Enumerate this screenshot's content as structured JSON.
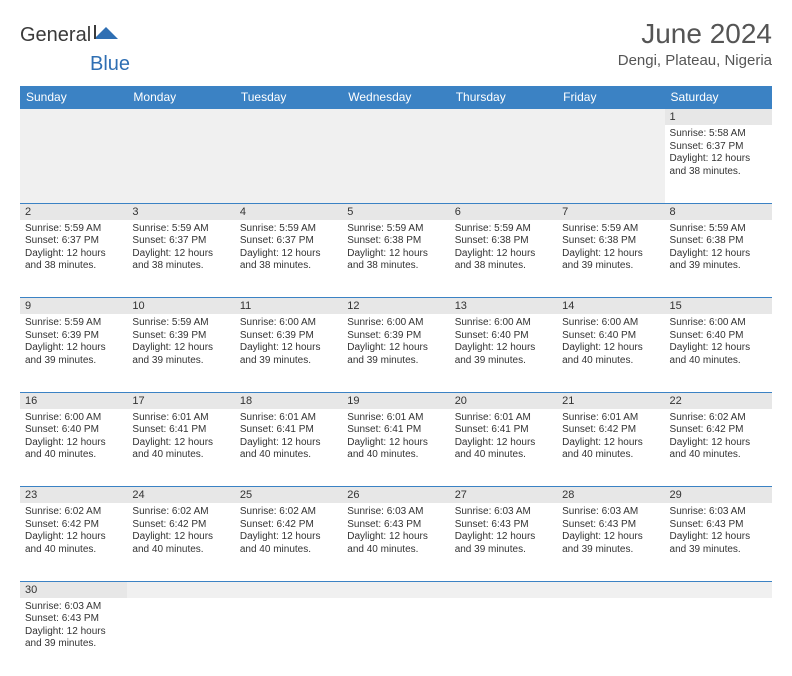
{
  "brand": {
    "part1": "General",
    "part2": "Blue",
    "brand_color": "#2f6fb3"
  },
  "title": "June 2024",
  "location": "Dengi, Plateau, Nigeria",
  "colors": {
    "header_bg": "#3b82c4",
    "header_fg": "#ffffff",
    "daynum_bg": "#e7e7e7",
    "rule": "#3b82c4",
    "empty_bg": "#f0f0f0"
  },
  "day_headers": [
    "Sunday",
    "Monday",
    "Tuesday",
    "Wednesday",
    "Thursday",
    "Friday",
    "Saturday"
  ],
  "weeks": [
    [
      null,
      null,
      null,
      null,
      null,
      null,
      {
        "n": "1",
        "sr": "Sunrise: 5:58 AM",
        "ss": "Sunset: 6:37 PM",
        "d1": "Daylight: 12 hours",
        "d2": "and 38 minutes."
      }
    ],
    [
      {
        "n": "2",
        "sr": "Sunrise: 5:59 AM",
        "ss": "Sunset: 6:37 PM",
        "d1": "Daylight: 12 hours",
        "d2": "and 38 minutes."
      },
      {
        "n": "3",
        "sr": "Sunrise: 5:59 AM",
        "ss": "Sunset: 6:37 PM",
        "d1": "Daylight: 12 hours",
        "d2": "and 38 minutes."
      },
      {
        "n": "4",
        "sr": "Sunrise: 5:59 AM",
        "ss": "Sunset: 6:37 PM",
        "d1": "Daylight: 12 hours",
        "d2": "and 38 minutes."
      },
      {
        "n": "5",
        "sr": "Sunrise: 5:59 AM",
        "ss": "Sunset: 6:38 PM",
        "d1": "Daylight: 12 hours",
        "d2": "and 38 minutes."
      },
      {
        "n": "6",
        "sr": "Sunrise: 5:59 AM",
        "ss": "Sunset: 6:38 PM",
        "d1": "Daylight: 12 hours",
        "d2": "and 38 minutes."
      },
      {
        "n": "7",
        "sr": "Sunrise: 5:59 AM",
        "ss": "Sunset: 6:38 PM",
        "d1": "Daylight: 12 hours",
        "d2": "and 39 minutes."
      },
      {
        "n": "8",
        "sr": "Sunrise: 5:59 AM",
        "ss": "Sunset: 6:38 PM",
        "d1": "Daylight: 12 hours",
        "d2": "and 39 minutes."
      }
    ],
    [
      {
        "n": "9",
        "sr": "Sunrise: 5:59 AM",
        "ss": "Sunset: 6:39 PM",
        "d1": "Daylight: 12 hours",
        "d2": "and 39 minutes."
      },
      {
        "n": "10",
        "sr": "Sunrise: 5:59 AM",
        "ss": "Sunset: 6:39 PM",
        "d1": "Daylight: 12 hours",
        "d2": "and 39 minutes."
      },
      {
        "n": "11",
        "sr": "Sunrise: 6:00 AM",
        "ss": "Sunset: 6:39 PM",
        "d1": "Daylight: 12 hours",
        "d2": "and 39 minutes."
      },
      {
        "n": "12",
        "sr": "Sunrise: 6:00 AM",
        "ss": "Sunset: 6:39 PM",
        "d1": "Daylight: 12 hours",
        "d2": "and 39 minutes."
      },
      {
        "n": "13",
        "sr": "Sunrise: 6:00 AM",
        "ss": "Sunset: 6:40 PM",
        "d1": "Daylight: 12 hours",
        "d2": "and 39 minutes."
      },
      {
        "n": "14",
        "sr": "Sunrise: 6:00 AM",
        "ss": "Sunset: 6:40 PM",
        "d1": "Daylight: 12 hours",
        "d2": "and 40 minutes."
      },
      {
        "n": "15",
        "sr": "Sunrise: 6:00 AM",
        "ss": "Sunset: 6:40 PM",
        "d1": "Daylight: 12 hours",
        "d2": "and 40 minutes."
      }
    ],
    [
      {
        "n": "16",
        "sr": "Sunrise: 6:00 AM",
        "ss": "Sunset: 6:40 PM",
        "d1": "Daylight: 12 hours",
        "d2": "and 40 minutes."
      },
      {
        "n": "17",
        "sr": "Sunrise: 6:01 AM",
        "ss": "Sunset: 6:41 PM",
        "d1": "Daylight: 12 hours",
        "d2": "and 40 minutes."
      },
      {
        "n": "18",
        "sr": "Sunrise: 6:01 AM",
        "ss": "Sunset: 6:41 PM",
        "d1": "Daylight: 12 hours",
        "d2": "and 40 minutes."
      },
      {
        "n": "19",
        "sr": "Sunrise: 6:01 AM",
        "ss": "Sunset: 6:41 PM",
        "d1": "Daylight: 12 hours",
        "d2": "and 40 minutes."
      },
      {
        "n": "20",
        "sr": "Sunrise: 6:01 AM",
        "ss": "Sunset: 6:41 PM",
        "d1": "Daylight: 12 hours",
        "d2": "and 40 minutes."
      },
      {
        "n": "21",
        "sr": "Sunrise: 6:01 AM",
        "ss": "Sunset: 6:42 PM",
        "d1": "Daylight: 12 hours",
        "d2": "and 40 minutes."
      },
      {
        "n": "22",
        "sr": "Sunrise: 6:02 AM",
        "ss": "Sunset: 6:42 PM",
        "d1": "Daylight: 12 hours",
        "d2": "and 40 minutes."
      }
    ],
    [
      {
        "n": "23",
        "sr": "Sunrise: 6:02 AM",
        "ss": "Sunset: 6:42 PM",
        "d1": "Daylight: 12 hours",
        "d2": "and 40 minutes."
      },
      {
        "n": "24",
        "sr": "Sunrise: 6:02 AM",
        "ss": "Sunset: 6:42 PM",
        "d1": "Daylight: 12 hours",
        "d2": "and 40 minutes."
      },
      {
        "n": "25",
        "sr": "Sunrise: 6:02 AM",
        "ss": "Sunset: 6:42 PM",
        "d1": "Daylight: 12 hours",
        "d2": "and 40 minutes."
      },
      {
        "n": "26",
        "sr": "Sunrise: 6:03 AM",
        "ss": "Sunset: 6:43 PM",
        "d1": "Daylight: 12 hours",
        "d2": "and 40 minutes."
      },
      {
        "n": "27",
        "sr": "Sunrise: 6:03 AM",
        "ss": "Sunset: 6:43 PM",
        "d1": "Daylight: 12 hours",
        "d2": "and 39 minutes."
      },
      {
        "n": "28",
        "sr": "Sunrise: 6:03 AM",
        "ss": "Sunset: 6:43 PM",
        "d1": "Daylight: 12 hours",
        "d2": "and 39 minutes."
      },
      {
        "n": "29",
        "sr": "Sunrise: 6:03 AM",
        "ss": "Sunset: 6:43 PM",
        "d1": "Daylight: 12 hours",
        "d2": "and 39 minutes."
      }
    ],
    [
      {
        "n": "30",
        "sr": "Sunrise: 6:03 AM",
        "ss": "Sunset: 6:43 PM",
        "d1": "Daylight: 12 hours",
        "d2": "and 39 minutes."
      },
      null,
      null,
      null,
      null,
      null,
      null
    ]
  ]
}
